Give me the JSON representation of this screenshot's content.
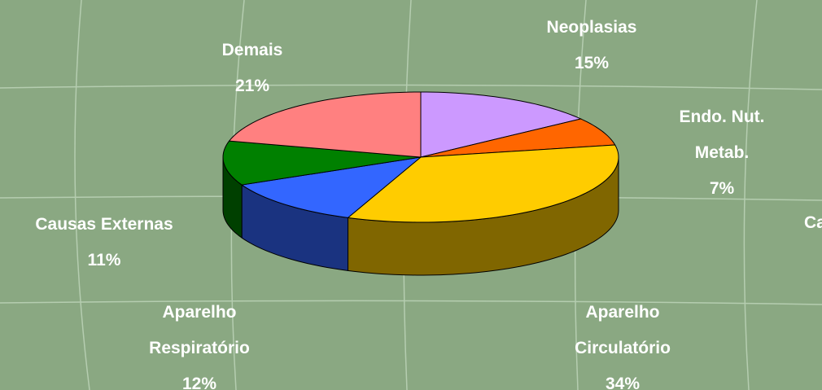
{
  "chart_data": {
    "type": "pie3d",
    "categories": [
      "Neoplasias",
      "Endo. Nut. Metab.",
      "Aparelho\nCirculatório",
      "Aparelho\nRespiratório",
      "Causas Externas",
      "Demais"
    ],
    "values": [
      15,
      7,
      34,
      12,
      11,
      21
    ],
    "value_labels": [
      "15%",
      "7%",
      "34%",
      "12%",
      "11%",
      "21%"
    ],
    "colors": [
      "#cc99ff",
      "#ff6600",
      "#ffcc00",
      "#3366ff",
      "#008000",
      "#ff8080"
    ],
    "side_colors": [
      "#8060a0",
      "#a04000",
      "#806600",
      "#1a3380",
      "#004000",
      "#a05050"
    ],
    "annotations": [
      "Ca"
    ]
  }
}
